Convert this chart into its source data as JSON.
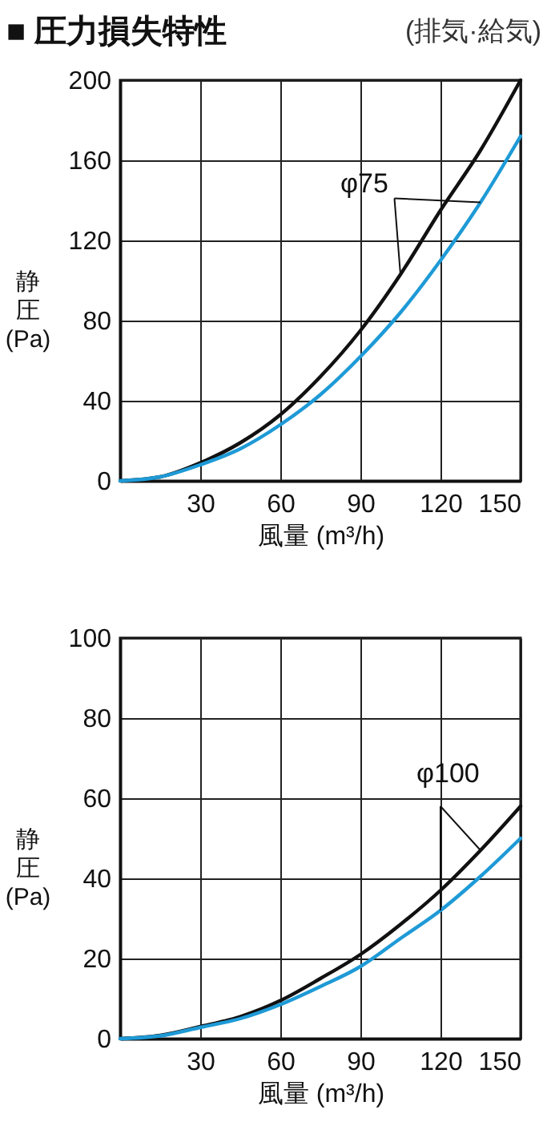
{
  "chart_data": [
    {
      "type": "line",
      "title": "■ 圧力損失特性",
      "subtitle": "(排気·給気)",
      "xlabel": "風量 (m³/h)",
      "ylabel": "静圧(Pa)",
      "annotations": [
        {
          "text": "φ75",
          "x": 105,
          "y": 103
        }
      ],
      "grid": true,
      "x": [
        0,
        15,
        30,
        45,
        60,
        75,
        90,
        105,
        120,
        135,
        150
      ],
      "xlim": [
        0,
        150
      ],
      "xticks": [
        {
          "value": 0,
          "label": null
        },
        30,
        60,
        90,
        120,
        150
      ],
      "ylim": [
        0,
        200
      ],
      "yticks": [
        0,
        40,
        80,
        120,
        160,
        200
      ],
      "series": [
        {
          "color": "#111111",
          "values": [
            0,
            2,
            9,
            19,
            33,
            52,
            75,
            103,
            135,
            165,
            200
          ]
        },
        {
          "color": "#1e9ad6",
          "values": [
            0,
            2,
            8,
            16,
            28,
            43,
            62,
            84,
            110,
            139,
            172
          ]
        }
      ]
    },
    {
      "type": "line",
      "xlabel": "風量 (m³/h)",
      "ylabel": "静圧(Pa)",
      "annotations": [
        {
          "text": "φ100",
          "x": 135,
          "y": 47
        }
      ],
      "grid": true,
      "x": [
        0,
        15,
        30,
        45,
        60,
        75,
        90,
        105,
        120,
        135,
        150
      ],
      "xlim": [
        0,
        150
      ],
      "xticks": [
        {
          "value": 0,
          "label": null
        },
        30,
        60,
        90,
        120,
        150
      ],
      "ylim": [
        0,
        100
      ],
      "yticks": [
        0,
        20,
        40,
        60,
        80,
        100
      ],
      "series": [
        {
          "color": "#111111",
          "values": [
            0,
            0.8,
            3,
            5.5,
            9.5,
            15,
            21,
            28.5,
            37,
            47,
            58
          ]
        },
        {
          "color": "#1e9ad6",
          "values": [
            0,
            0.7,
            2.8,
            5,
            8.5,
            13,
            18,
            25,
            32,
            40.5,
            50
          ]
        }
      ]
    }
  ]
}
